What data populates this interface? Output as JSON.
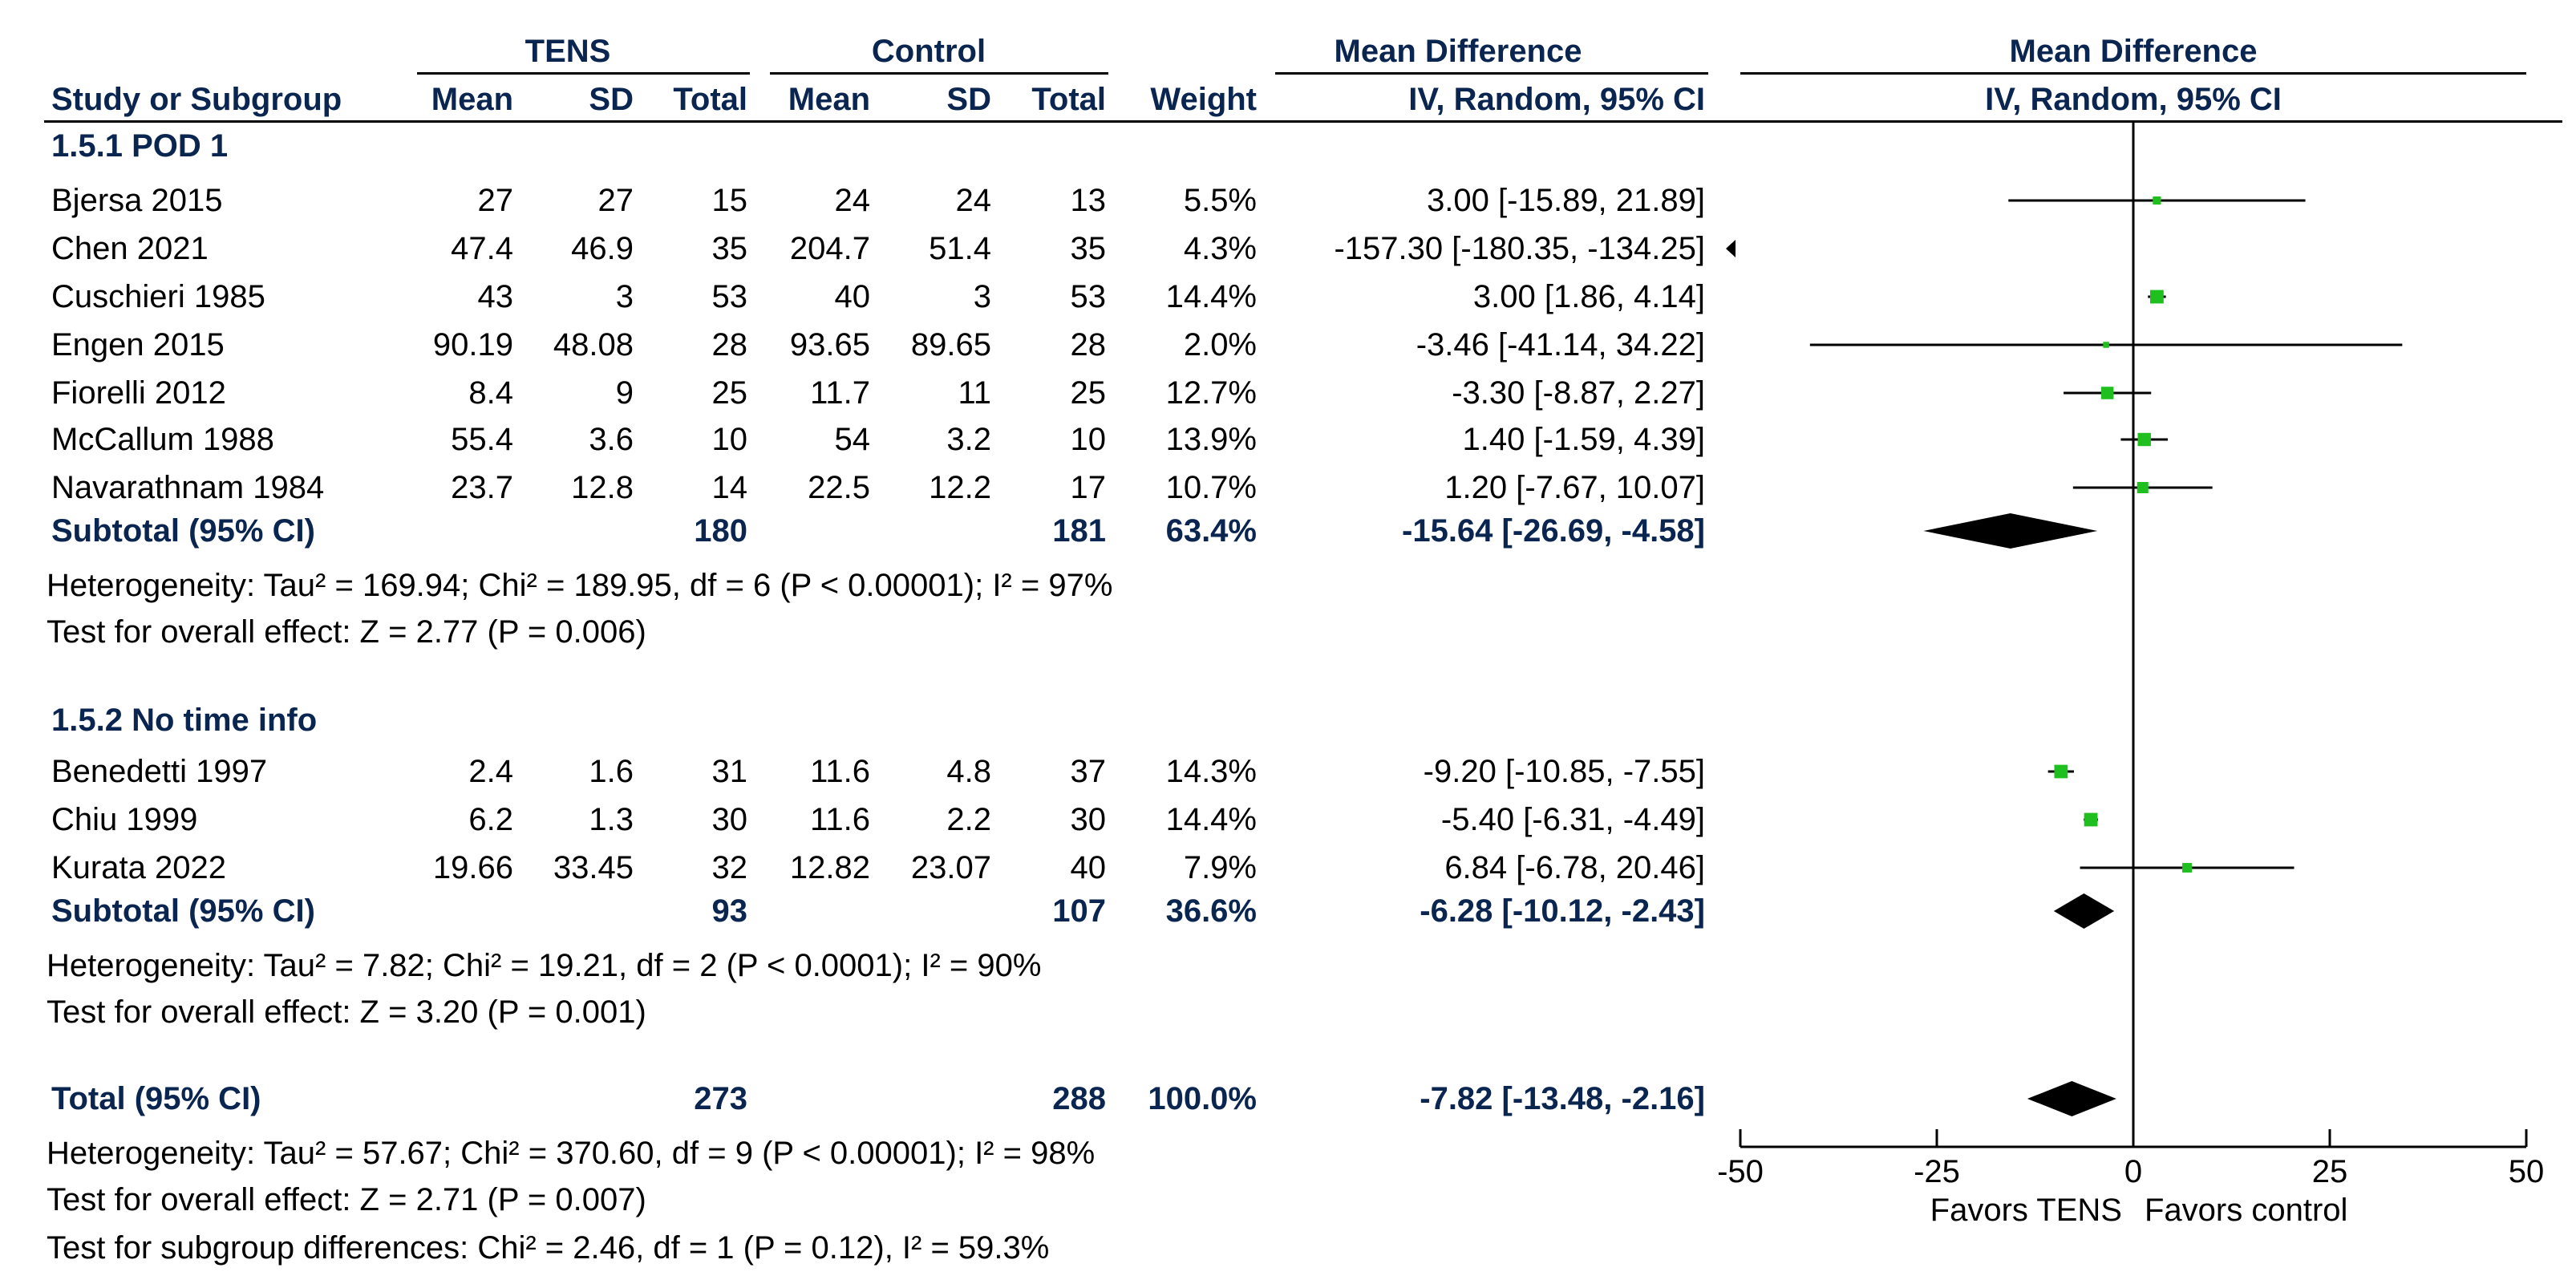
{
  "header": {
    "group_tens": "TENS",
    "group_control": "Control",
    "md_title": "Mean Difference",
    "plot_title": "Mean Difference",
    "col_study": "Study or Subgroup",
    "col_mean1": "Mean",
    "col_sd1": "SD",
    "col_total1": "Total",
    "col_mean2": "Mean",
    "col_sd2": "SD",
    "col_total2": "Total",
    "col_weight": "Weight",
    "col_ci": "IV, Random, 95% CI",
    "plot_ci": "IV, Random, 95% CI"
  },
  "groups": [
    {
      "title": "1.5.1 POD 1",
      "studies": [
        {
          "name": "Bjersa 2015",
          "m1": "27",
          "sd1": "27",
          "n1": "15",
          "m2": "24",
          "sd2": "24",
          "n2": "13",
          "w": "5.5%",
          "ci": "3.00 [-15.89, 21.89]"
        },
        {
          "name": "Chen 2021",
          "m1": "47.4",
          "sd1": "46.9",
          "n1": "35",
          "m2": "204.7",
          "sd2": "51.4",
          "n2": "35",
          "w": "4.3%",
          "ci": "-157.30 [-180.35, -134.25]"
        },
        {
          "name": "Cuschieri 1985",
          "m1": "43",
          "sd1": "3",
          "n1": "53",
          "m2": "40",
          "sd2": "3",
          "n2": "53",
          "w": "14.4%",
          "ci": "3.00 [1.86, 4.14]"
        },
        {
          "name": "Engen 2015",
          "m1": "90.19",
          "sd1": "48.08",
          "n1": "28",
          "m2": "93.65",
          "sd2": "89.65",
          "n2": "28",
          "w": "2.0%",
          "ci": "-3.46 [-41.14, 34.22]"
        },
        {
          "name": "Fiorelli 2012",
          "m1": "8.4",
          "sd1": "9",
          "n1": "25",
          "m2": "11.7",
          "sd2": "11",
          "n2": "25",
          "w": "12.7%",
          "ci": "-3.30 [-8.87, 2.27]"
        },
        {
          "name": "McCallum 1988",
          "m1": "55.4",
          "sd1": "3.6",
          "n1": "10",
          "m2": "54",
          "sd2": "3.2",
          "n2": "10",
          "w": "13.9%",
          "ci": "1.40 [-1.59, 4.39]"
        },
        {
          "name": "Navarathnam 1984",
          "m1": "23.7",
          "sd1": "12.8",
          "n1": "14",
          "m2": "22.5",
          "sd2": "12.2",
          "n2": "17",
          "w": "10.7%",
          "ci": "1.20 [-7.67, 10.07]"
        }
      ],
      "subtotal": {
        "label": "Subtotal (95% CI)",
        "n1": "180",
        "n2": "181",
        "w": "63.4%",
        "ci": "-15.64 [-26.69, -4.58]"
      },
      "heterogeneity": "Heterogeneity: Tau² = 169.94; Chi² = 189.95, df = 6 (P < 0.00001); I² = 97%",
      "overall": "Test for overall effect: Z = 2.77 (P = 0.006)"
    },
    {
      "title": "1.5.2 No time info",
      "studies": [
        {
          "name": "Benedetti 1997",
          "m1": "2.4",
          "sd1": "1.6",
          "n1": "31",
          "m2": "11.6",
          "sd2": "4.8",
          "n2": "37",
          "w": "14.3%",
          "ci": "-9.20 [-10.85, -7.55]"
        },
        {
          "name": "Chiu 1999",
          "m1": "6.2",
          "sd1": "1.3",
          "n1": "30",
          "m2": "11.6",
          "sd2": "2.2",
          "n2": "30",
          "w": "14.4%",
          "ci": "-5.40 [-6.31, -4.49]"
        },
        {
          "name": "Kurata 2022",
          "m1": "19.66",
          "sd1": "33.45",
          "n1": "32",
          "m2": "12.82",
          "sd2": "23.07",
          "n2": "40",
          "w": "7.9%",
          "ci": "6.84 [-6.78, 20.46]"
        }
      ],
      "subtotal": {
        "label": "Subtotal (95% CI)",
        "n1": "93",
        "n2": "107",
        "w": "36.6%",
        "ci": "-6.28 [-10.12, -2.43]"
      },
      "heterogeneity": "Heterogeneity: Tau² = 7.82; Chi² = 19.21, df = 2 (P < 0.0001); I² = 90%",
      "overall": "Test for overall effect: Z = 3.20 (P = 0.001)"
    }
  ],
  "total": {
    "label": "Total (95% CI)",
    "n1": "273",
    "n2": "288",
    "w": "100.0%",
    "ci": "-7.82 [-13.48, -2.16]",
    "heterogeneity": "Heterogeneity: Tau² = 57.67; Chi² = 370.60, df = 9 (P < 0.00001); I² = 98%",
    "overall": "Test for overall effect: Z = 2.71 (P = 0.007)",
    "subgroup": "Test for subgroup differences: Chi² = 2.46, df = 1 (P = 0.12), I² = 59.3%"
  },
  "axis": {
    "ticks": [
      "-50",
      "-25",
      "0",
      "25",
      "50"
    ],
    "favors_left": "Favors TENS",
    "favors_right": "Favors control"
  },
  "colors": {
    "marker": "#1fbf1f",
    "diamond": "#000000",
    "bold_text": "#0a2650"
  },
  "chart_data": {
    "type": "forest",
    "title": "Mean Difference IV, Random, 95% CI",
    "xlim": [
      -50,
      50
    ],
    "xticks": [
      -50,
      -25,
      0,
      25,
      50
    ],
    "xlabel_left": "Favors TENS",
    "xlabel_right": "Favors control",
    "studies": [
      {
        "name": "Bjersa 2015",
        "md": 3.0,
        "lo": -15.89,
        "hi": 21.89,
        "weight": 5.5
      },
      {
        "name": "Chen 2021",
        "md": -157.3,
        "lo": -180.35,
        "hi": -134.25,
        "weight": 4.3
      },
      {
        "name": "Cuschieri 1985",
        "md": 3.0,
        "lo": 1.86,
        "hi": 4.14,
        "weight": 14.4
      },
      {
        "name": "Engen 2015",
        "md": -3.46,
        "lo": -41.14,
        "hi": 34.22,
        "weight": 2.0
      },
      {
        "name": "Fiorelli 2012",
        "md": -3.3,
        "lo": -8.87,
        "hi": 2.27,
        "weight": 12.7
      },
      {
        "name": "McCallum 1988",
        "md": 1.4,
        "lo": -1.59,
        "hi": 4.39,
        "weight": 13.9
      },
      {
        "name": "Navarathnam 1984",
        "md": 1.2,
        "lo": -7.67,
        "hi": 10.07,
        "weight": 10.7
      },
      {
        "name": "Benedetti 1997",
        "md": -9.2,
        "lo": -10.85,
        "hi": -7.55,
        "weight": 14.3
      },
      {
        "name": "Chiu 1999",
        "md": -5.4,
        "lo": -6.31,
        "hi": -4.49,
        "weight": 14.4
      },
      {
        "name": "Kurata 2022",
        "md": 6.84,
        "lo": -6.78,
        "hi": 20.46,
        "weight": 7.9
      }
    ],
    "pooled": [
      {
        "name": "Subtotal 1.5.1 POD 1",
        "md": -15.64,
        "lo": -26.69,
        "hi": -4.58
      },
      {
        "name": "Subtotal 1.5.2 No time info",
        "md": -6.28,
        "lo": -10.12,
        "hi": -2.43
      },
      {
        "name": "Total",
        "md": -7.82,
        "lo": -13.48,
        "hi": -2.16
      }
    ]
  }
}
